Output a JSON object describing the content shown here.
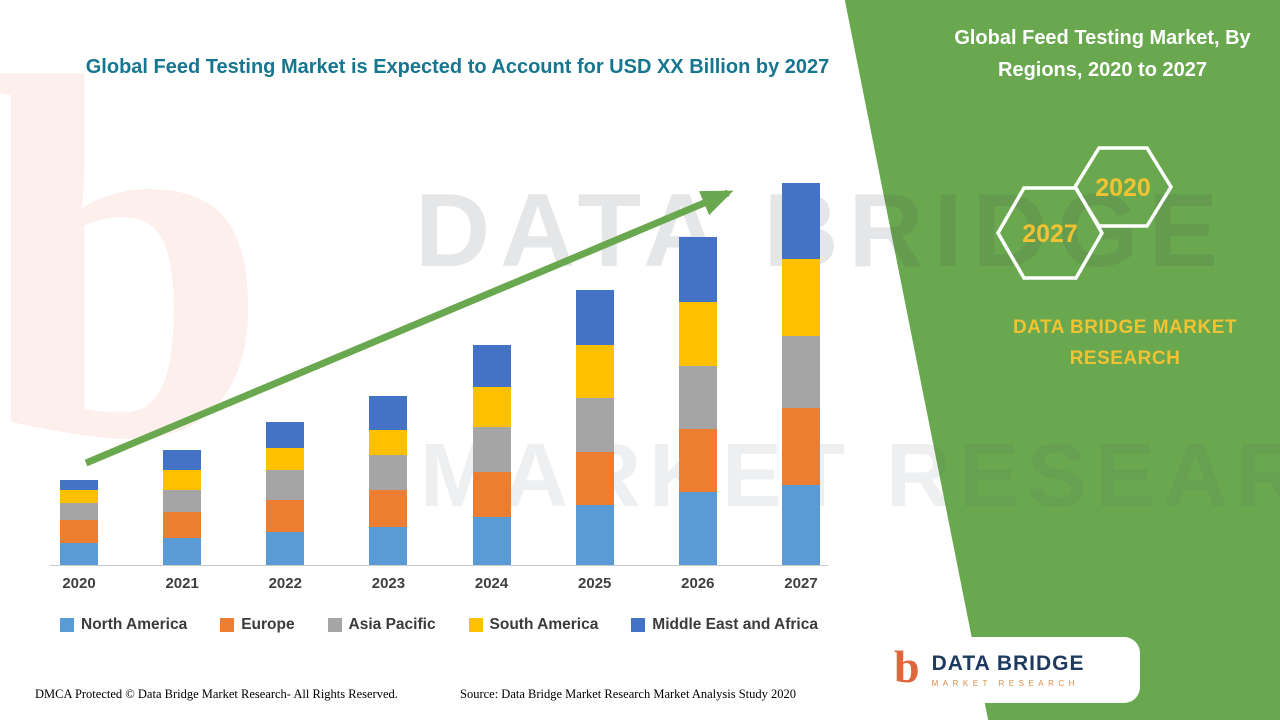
{
  "colors": {
    "panel_green": "#69A84F",
    "arrow_green": "#69A84F",
    "title_teal": "#17768F",
    "gold_accent": "#F1C232",
    "logo_navy": "#1E3A5F",
    "logo_orange": "#E0663C"
  },
  "main": {
    "title": "Global Feed Testing Market is Expected to Account for USD XX Billion by 2027",
    "watermark_line1": "DATA BRIDGE",
    "watermark_line2": "MARKET RESEARCH",
    "watermark_monogram": "b"
  },
  "side_panel": {
    "heading": "Global Feed Testing Market, By Regions, 2020 to 2027",
    "hexagon_front_year": "2027",
    "hexagon_back_year": "2020",
    "brand_line1": "DATA BRIDGE MARKET",
    "brand_line2": "RESEARCH"
  },
  "footer": {
    "dmca": "DMCA Protected © Data Bridge Market Research- All Rights Reserved.",
    "source": "Source: Data Bridge Market Research Market Analysis Study 2020"
  },
  "logo_box": {
    "monogram": "b",
    "name": "DATA BRIDGE",
    "subtitle": "MARKET RESEARCH"
  },
  "chart_data": {
    "type": "bar",
    "stacked": true,
    "title": "Global Feed Testing Market is Expected to Account for USD XX Billion by 2027",
    "categories": [
      "2020",
      "2021",
      "2022",
      "2023",
      "2024",
      "2025",
      "2026",
      "2027"
    ],
    "series": [
      {
        "name": "North America",
        "color": "#5B9BD5",
        "values": [
          5.8,
          7,
          8.6,
          10,
          12.6,
          15.7,
          19,
          21
        ]
      },
      {
        "name": "Europe",
        "color": "#ED7D31",
        "values": [
          6,
          6.8,
          8.4,
          9.7,
          11.8,
          14,
          16.5,
          20
        ]
      },
      {
        "name": "Asia Pacific",
        "color": "#A5A5A5",
        "values": [
          4.5,
          5.8,
          7.9,
          9.2,
          11.8,
          14,
          16.5,
          19
        ]
      },
      {
        "name": "South America",
        "color": "#FFC000",
        "values": [
          3.4,
          5.2,
          5.8,
          6.5,
          10.5,
          14,
          17,
          20
        ]
      },
      {
        "name": "Middle East and Africa",
        "color": "#4472C4",
        "values": [
          2.6,
          5.2,
          6.8,
          8.9,
          11,
          14.3,
          17,
          20
        ]
      }
    ],
    "xlabel": "",
    "ylabel": "",
    "ylim": [
      0,
      100
    ],
    "grid": false,
    "legend_position": "bottom",
    "trend_arrow": true,
    "value_note": "No y-axis is shown in the figure; values are relative units estimated from bar heights (2027 total = 100)."
  }
}
